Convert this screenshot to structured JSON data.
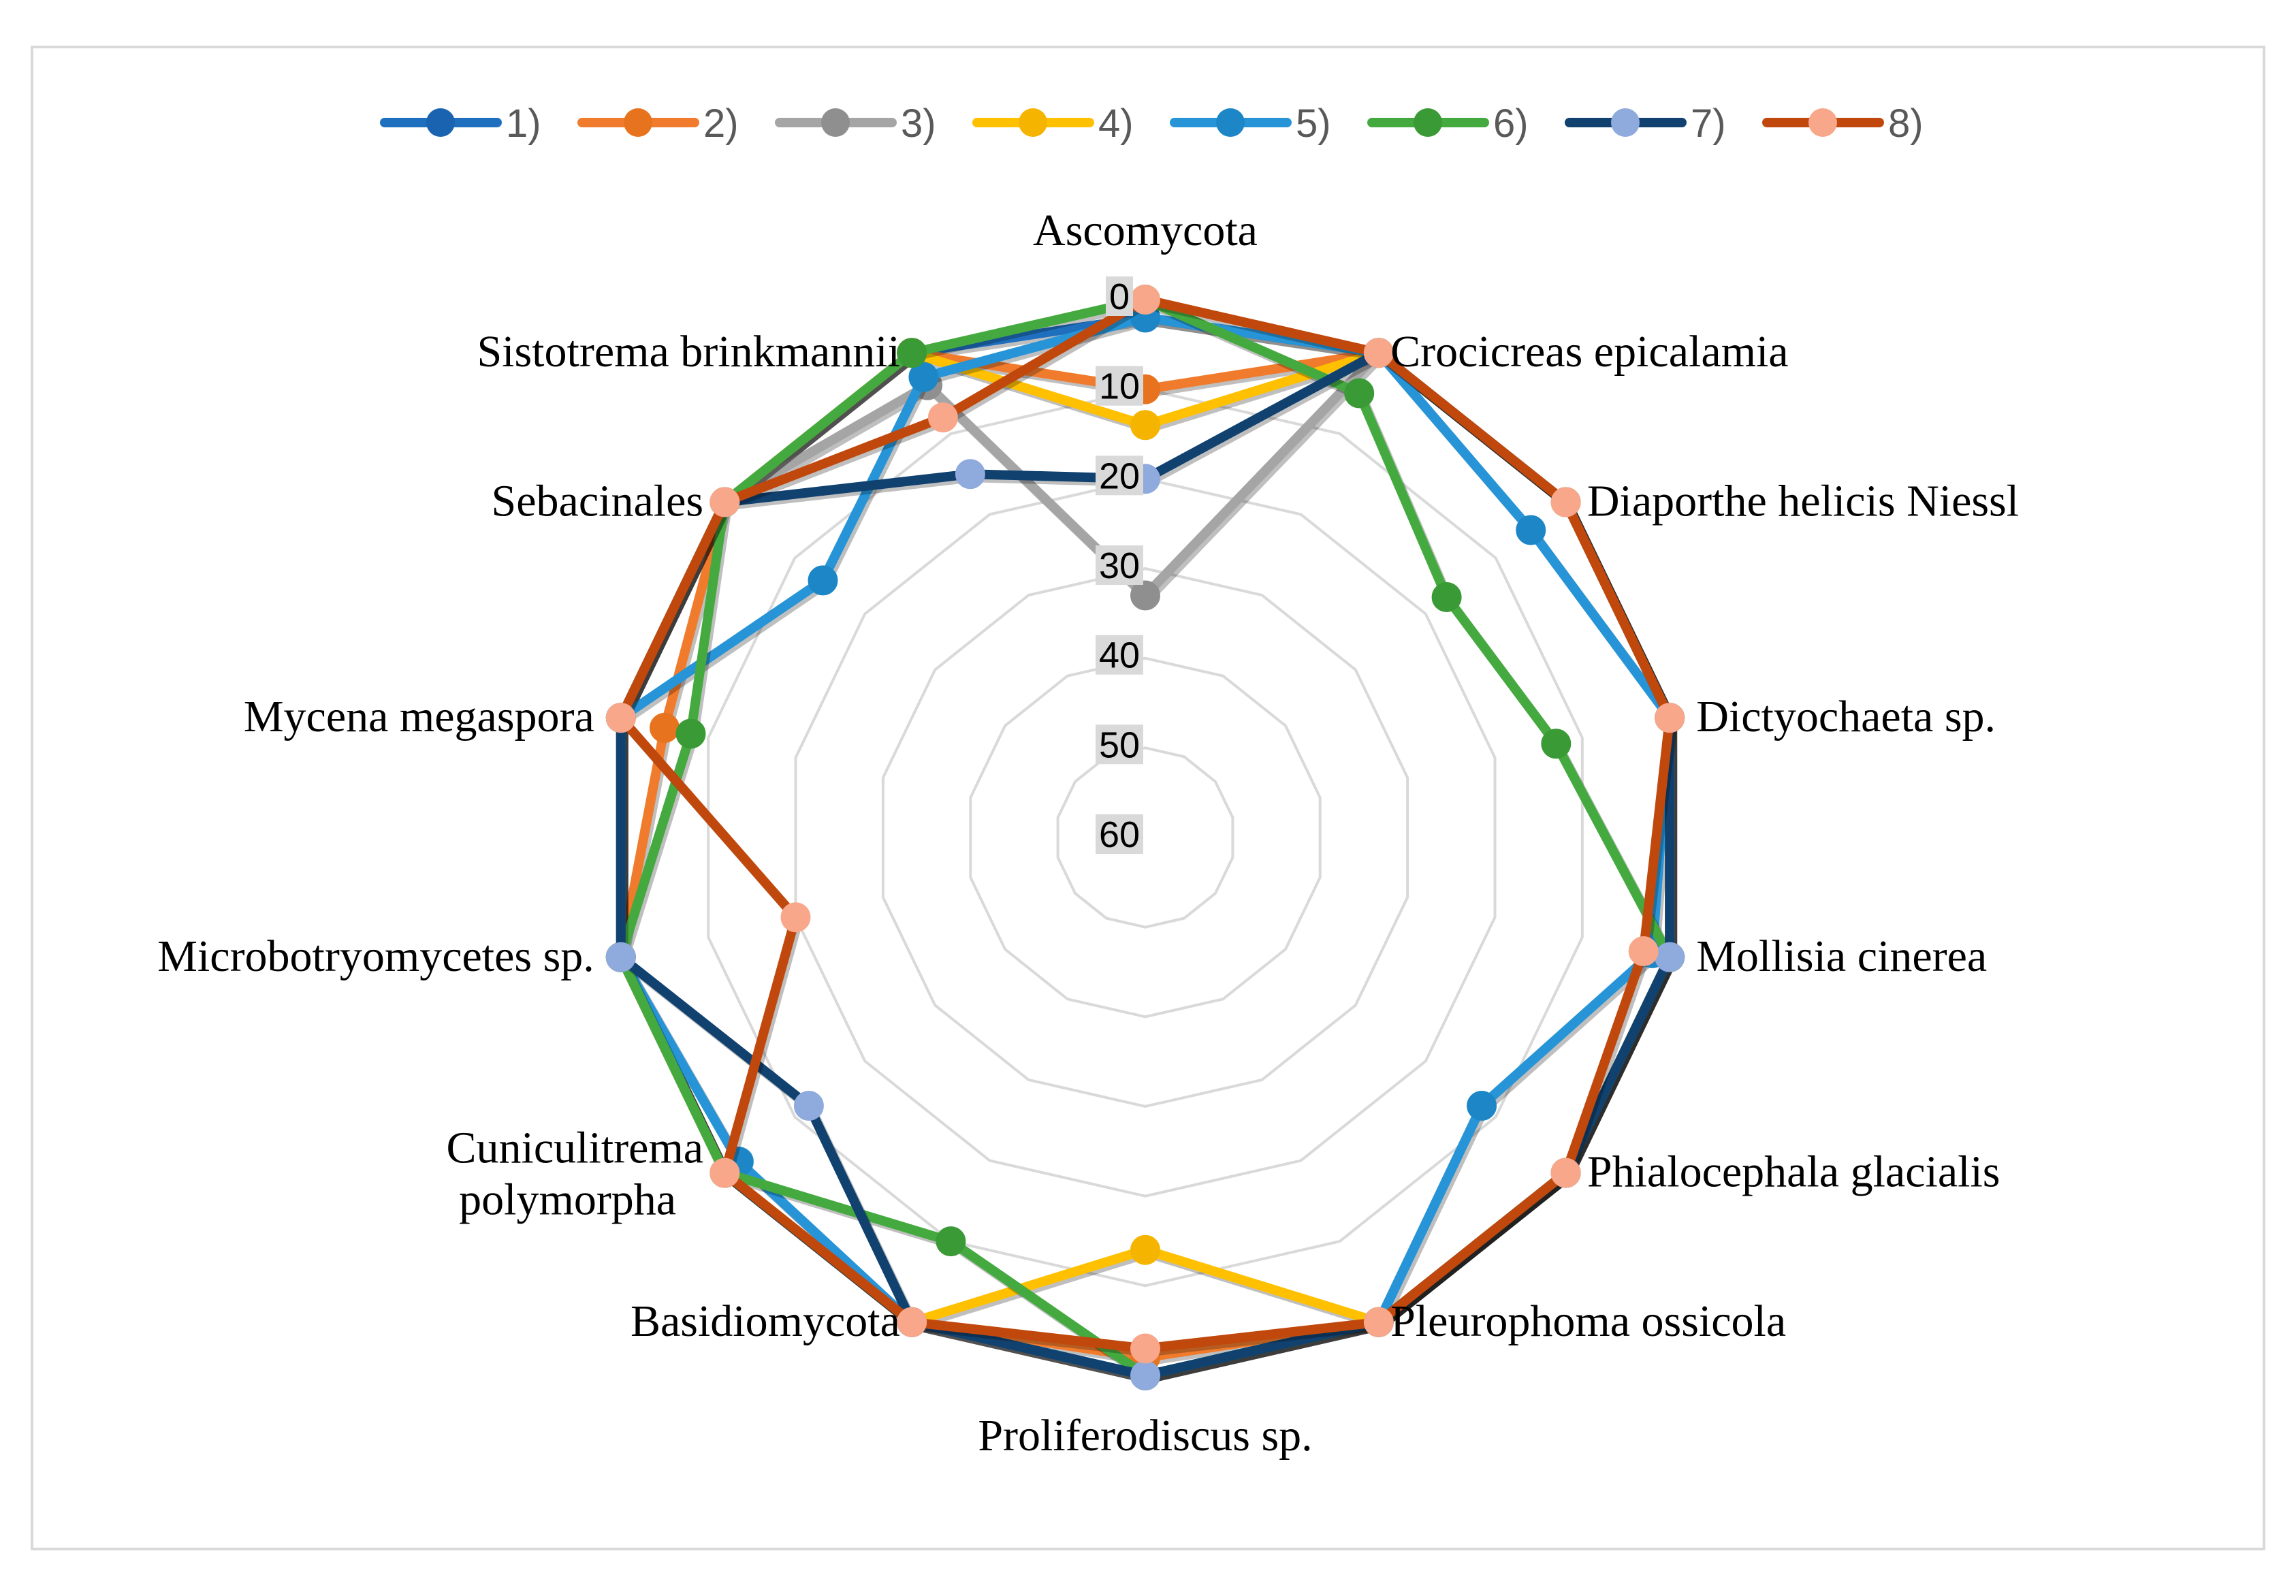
{
  "chart_data": {
    "type": "radar",
    "axis_direction": "reversed",
    "rlim": [
      0,
      60
    ],
    "r_ticks": [
      "0",
      "10",
      "20",
      "30",
      "40",
      "50",
      "60"
    ],
    "grid": true,
    "legend_position": "top",
    "categories": [
      "Ascomycota",
      "Crocicreas epicalamia",
      "Diaporthe helicis Niessl",
      "Dictyochaeta sp.",
      "Mollisia cinerea",
      "Phialocephala glacialis",
      "Pleurophoma ossicola",
      "Proliferodiscus sp.",
      "Basidiomycota",
      "Cuniculitrema polymorpha",
      "Microbotryomycetes sp.",
      "Mycena megaspora",
      "Sebacinales",
      "Sistotrema brinkmannii"
    ],
    "series": [
      {
        "name": "1)",
        "color": "#1f6fbf",
        "marker": "#1a63b0",
        "values": [
          2,
          0,
          0,
          0,
          0,
          0,
          0,
          0,
          0,
          0,
          0,
          0,
          0,
          0
        ]
      },
      {
        "name": "2)",
        "color": "#f07b2c",
        "marker": "#e8731e",
        "values": [
          10,
          0,
          0,
          0,
          0,
          0,
          0,
          2,
          0,
          0,
          0,
          5,
          0,
          0
        ]
      },
      {
        "name": "3)",
        "color": "#a5a5a5",
        "marker": "#8f8f8f",
        "values": [
          33,
          0,
          0,
          0,
          0,
          0,
          0,
          0,
          0,
          0,
          0,
          0,
          0,
          4
        ]
      },
      {
        "name": "4)",
        "color": "#ffc000",
        "marker": "#f5b400",
        "values": [
          14,
          0,
          0,
          0,
          0,
          0,
          0,
          14,
          0,
          0,
          0,
          0,
          0,
          0
        ]
      },
      {
        "name": "5)",
        "color": "#2694d6",
        "marker": "#1d86c6",
        "values": [
          2,
          0,
          5,
          0,
          2,
          12,
          0,
          0,
          0,
          2,
          0,
          0,
          14,
          3
        ]
      },
      {
        "name": "6)",
        "color": "#44aa3f",
        "marker": "#3a9a35",
        "values": [
          0,
          5,
          17,
          13,
          0,
          0,
          0,
          0,
          10,
          0,
          0,
          8,
          0,
          0
        ]
      },
      {
        "name": "7)",
        "color": "#10416f",
        "marker": "#8faadc",
        "values": [
          20,
          0,
          0,
          0,
          0,
          0,
          0,
          0,
          0,
          12,
          0,
          0,
          0,
          15
        ]
      },
      {
        "name": "8)",
        "color": "#c1480c",
        "marker": "#f8a78a",
        "values": [
          0,
          0,
          0,
          0,
          3,
          0,
          0,
          3,
          0,
          0,
          20,
          0,
          0,
          8
        ]
      }
    ]
  }
}
